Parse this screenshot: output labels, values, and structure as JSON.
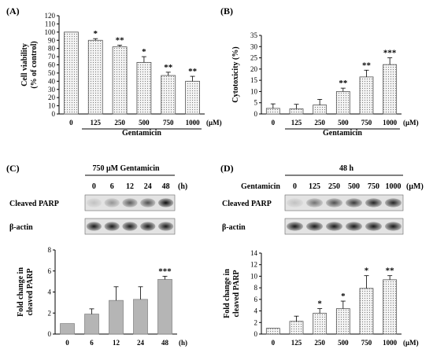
{
  "panels": {
    "A": {
      "label": "(A)"
    },
    "B": {
      "label": "(B)"
    },
    "C": {
      "label": "(C)",
      "blot_header": "750 μM Gentamicin",
      "unit": "(h)"
    },
    "D": {
      "label": "(D)",
      "blot_header": "48 h",
      "row_label": "Gentamicin",
      "unit": "(μM)"
    }
  },
  "blots": {
    "C": {
      "lanes": [
        "0",
        "6",
        "12",
        "24",
        "48"
      ],
      "rows": [
        {
          "name": "Cleaved PARP",
          "intensity": [
            0.15,
            0.35,
            0.6,
            0.65,
            0.95
          ]
        },
        {
          "name": "β-actin",
          "intensity": [
            0.9,
            0.9,
            0.9,
            0.9,
            0.9
          ]
        }
      ]
    },
    "D": {
      "lanes": [
        "0",
        "125",
        "250",
        "500",
        "750",
        "1000"
      ],
      "rows": [
        {
          "name": "Cleaved PARP",
          "intensity": [
            0.15,
            0.5,
            0.65,
            0.75,
            0.85,
            0.85
          ]
        },
        {
          "name": "β-actin",
          "intensity": [
            0.9,
            0.9,
            0.9,
            0.9,
            0.9,
            0.9
          ]
        }
      ]
    }
  },
  "chart_data": [
    {
      "id": "A",
      "type": "bar",
      "categories": [
        "0",
        "125",
        "250",
        "500",
        "750",
        "1000"
      ],
      "values": [
        100,
        90,
        82,
        63,
        47,
        40
      ],
      "errors": [
        0,
        2,
        2,
        7,
        4,
        6
      ],
      "significance": [
        "",
        "*",
        "**",
        "*",
        "**",
        "**"
      ],
      "ylabel": "Cell viability\n(% of control)",
      "xlabel": "Gentamicin",
      "xunit": "(μM)",
      "ylim": [
        0,
        120
      ],
      "yticks": [
        0,
        10,
        20,
        30,
        40,
        50,
        60,
        70,
        80,
        90,
        100,
        110,
        120
      ],
      "grid": false
    },
    {
      "id": "B",
      "type": "bar",
      "categories": [
        "0",
        "125",
        "250",
        "500",
        "750",
        "1000"
      ],
      "values": [
        2.5,
        2.3,
        4,
        10,
        16.5,
        22
      ],
      "errors": [
        2,
        2,
        2.5,
        1.5,
        3,
        3
      ],
      "significance": [
        "",
        "",
        "",
        "**",
        "**",
        "***"
      ],
      "ylabel": "Cytotoxicity (%)",
      "xlabel": "Gentamicin",
      "xunit": "(μM)",
      "ylim": [
        0,
        35
      ],
      "yticks": [
        0,
        5,
        10,
        15,
        20,
        25,
        30,
        35
      ],
      "grid": false
    },
    {
      "id": "C",
      "type": "bar",
      "categories": [
        "0",
        "6",
        "12",
        "24",
        "48"
      ],
      "values": [
        1,
        1.9,
        3.2,
        3.3,
        5.2
      ],
      "errors": [
        0,
        0.5,
        1.3,
        1.2,
        0.3
      ],
      "significance": [
        "",
        "",
        "",
        "",
        "***"
      ],
      "ylabel": "Fold change in\ncleaved PARP",
      "xunit": "(h)",
      "ylim": [
        0,
        8
      ],
      "yticks": [
        0,
        2,
        4,
        6,
        8
      ],
      "grid": false
    },
    {
      "id": "D",
      "type": "bar",
      "categories": [
        "0",
        "125",
        "250",
        "500",
        "750",
        "1000"
      ],
      "values": [
        1,
        2.2,
        3.6,
        4.4,
        7.9,
        9.4
      ],
      "errors": [
        0,
        0.9,
        0.8,
        1.3,
        2.2,
        0.7
      ],
      "significance": [
        "",
        "",
        "*",
        "*",
        "*",
        "**"
      ],
      "ylabel": "Fold change in\ncleaved PARP",
      "xunit": "(μM)",
      "ylim": [
        0,
        14
      ],
      "yticks": [
        0,
        2,
        4,
        6,
        8,
        10,
        12,
        14
      ],
      "grid": false
    }
  ]
}
